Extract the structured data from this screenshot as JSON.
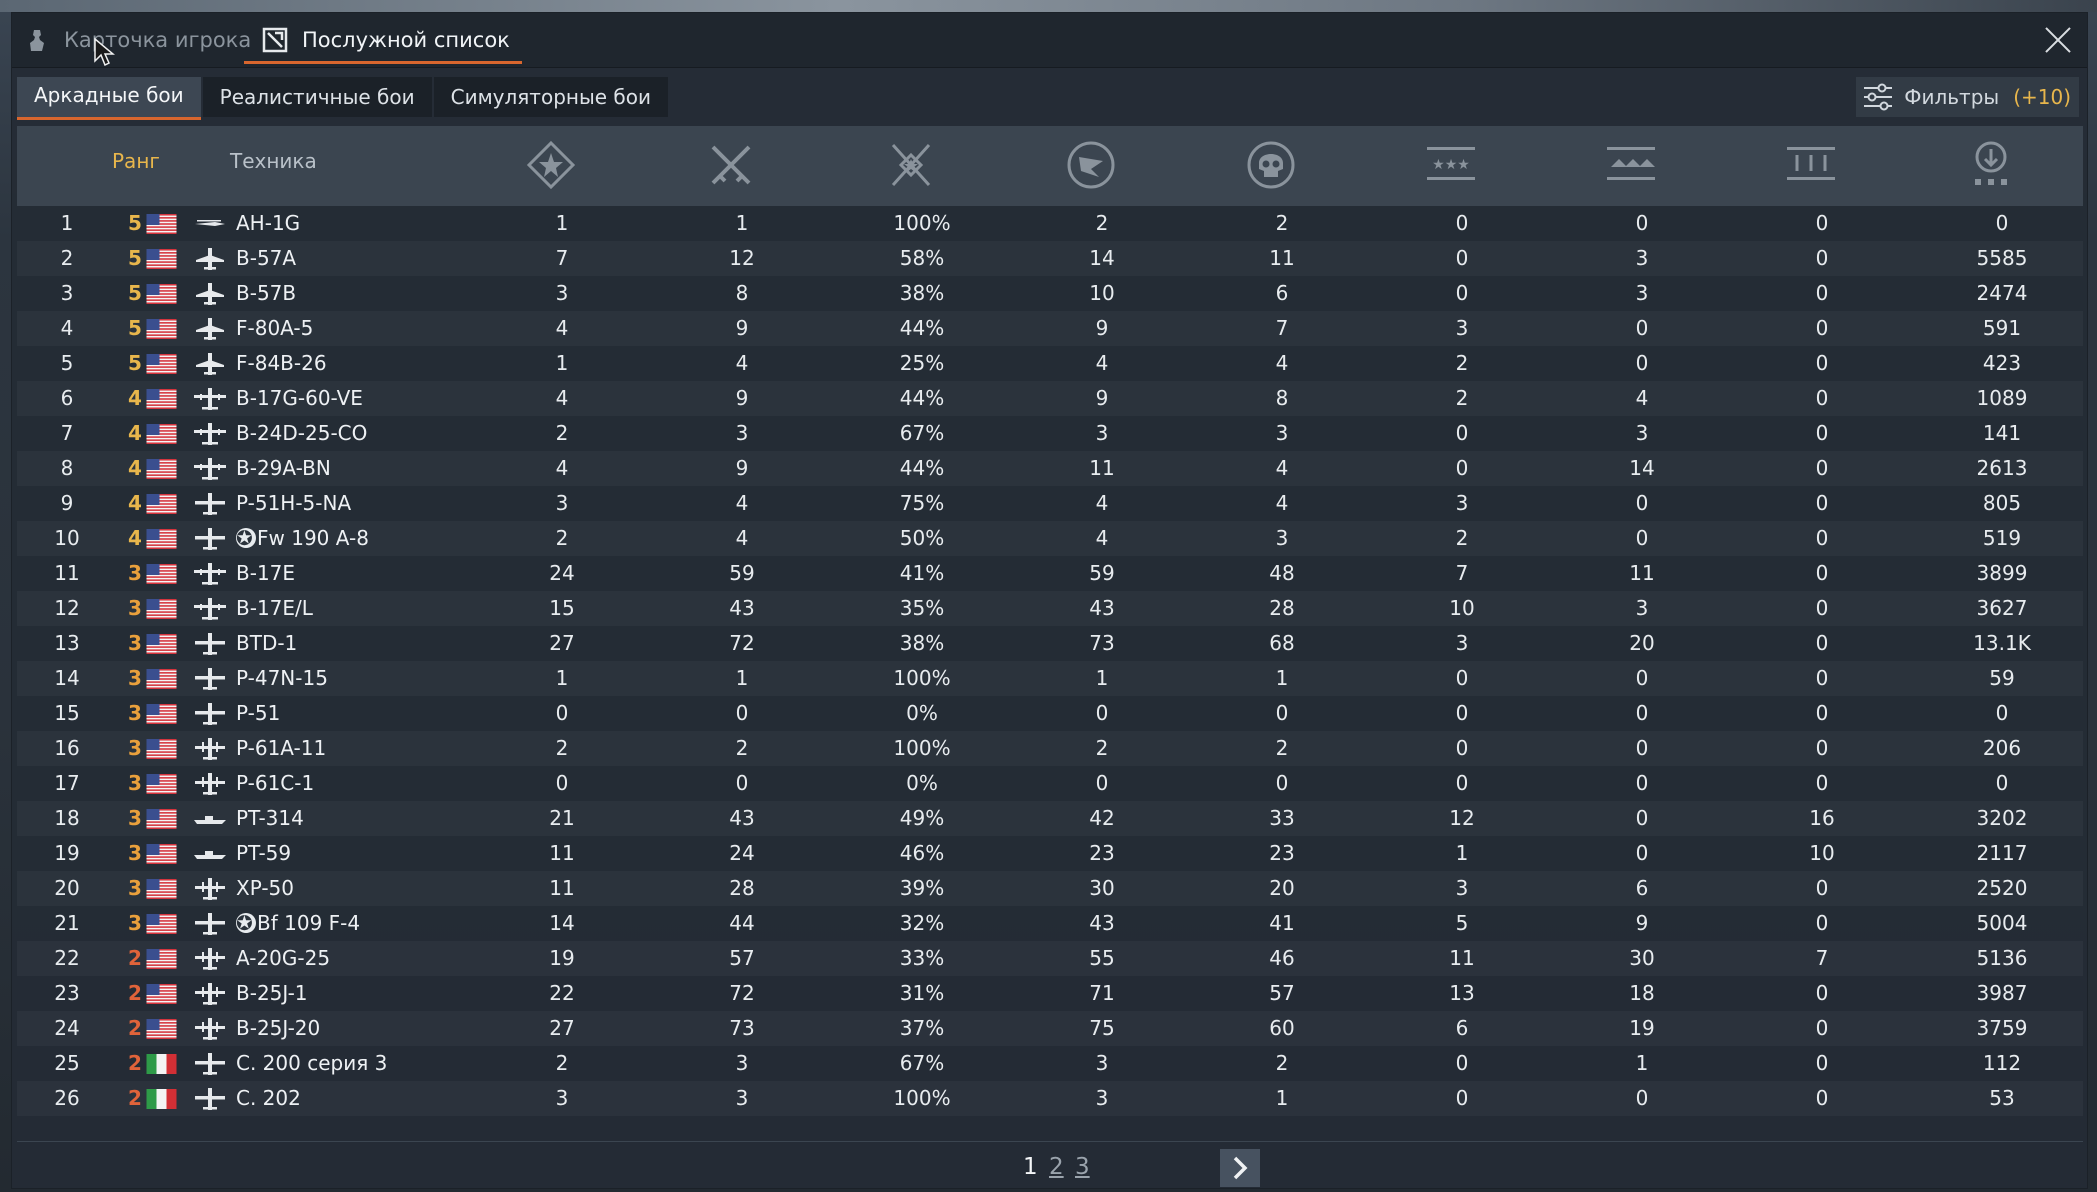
{
  "window_tabs": [
    {
      "label": "Карточка игрока",
      "active": false,
      "icon": "soldier-icon"
    },
    {
      "label": "Послужной список",
      "active": true,
      "icon": "medal-icon"
    }
  ],
  "mode_tabs": [
    {
      "label": "Аркадные бои",
      "active": true
    },
    {
      "label": "Реалистичные бои",
      "active": false
    },
    {
      "label": "Симуляторные бои",
      "active": false
    }
  ],
  "filters": {
    "label": "Фильтры",
    "count": "(+10)",
    "icon": "sliders-icon"
  },
  "table": {
    "headers": {
      "rank": "Ранг",
      "vehicle": "Техника"
    },
    "stat_icons": [
      "battles-star-icon",
      "crossed-swords-icon",
      "winrate-emblem-icon",
      "respawns-flag-icon",
      "deaths-skull-icon",
      "air-kills-icon",
      "ground-kills-icon",
      "naval-kills-icon",
      "score-icon"
    ],
    "rows": [
      {
        "idx": "1",
        "rank": "5",
        "nation": "usa",
        "type": "helicopter",
        "badge": false,
        "name": "AH-1G",
        "stats": [
          "1",
          "1",
          "100%",
          "2",
          "2",
          "0",
          "0",
          "0",
          "0"
        ]
      },
      {
        "idx": "2",
        "rank": "5",
        "nation": "usa",
        "type": "jet",
        "badge": false,
        "name": "B-57A",
        "stats": [
          "7",
          "12",
          "58%",
          "14",
          "11",
          "0",
          "3",
          "0",
          "5585"
        ]
      },
      {
        "idx": "3",
        "rank": "5",
        "nation": "usa",
        "type": "jet",
        "badge": false,
        "name": "B-57B",
        "stats": [
          "3",
          "8",
          "38%",
          "10",
          "6",
          "0",
          "3",
          "0",
          "2474"
        ]
      },
      {
        "idx": "4",
        "rank": "5",
        "nation": "usa",
        "type": "jet",
        "badge": false,
        "name": "F-80A-5",
        "stats": [
          "4",
          "9",
          "44%",
          "9",
          "7",
          "3",
          "0",
          "0",
          "591"
        ]
      },
      {
        "idx": "5",
        "rank": "5",
        "nation": "usa",
        "type": "jet",
        "badge": false,
        "name": "F-84B-26",
        "stats": [
          "1",
          "4",
          "25%",
          "4",
          "4",
          "2",
          "0",
          "0",
          "423"
        ]
      },
      {
        "idx": "6",
        "rank": "4",
        "nation": "usa",
        "type": "bomber",
        "badge": false,
        "name": "B-17G-60-VE",
        "stats": [
          "4",
          "9",
          "44%",
          "9",
          "8",
          "2",
          "4",
          "0",
          "1089"
        ]
      },
      {
        "idx": "7",
        "rank": "4",
        "nation": "usa",
        "type": "bomber",
        "badge": false,
        "name": "B-24D-25-CO",
        "stats": [
          "2",
          "3",
          "67%",
          "3",
          "3",
          "0",
          "3",
          "0",
          "141"
        ]
      },
      {
        "idx": "8",
        "rank": "4",
        "nation": "usa",
        "type": "bomber",
        "badge": false,
        "name": "B-29A-BN",
        "stats": [
          "4",
          "9",
          "44%",
          "11",
          "4",
          "0",
          "14",
          "0",
          "2613"
        ]
      },
      {
        "idx": "9",
        "rank": "4",
        "nation": "usa",
        "type": "fighter",
        "badge": false,
        "name": "P-51H-5-NA",
        "stats": [
          "3",
          "4",
          "75%",
          "4",
          "4",
          "3",
          "0",
          "0",
          "805"
        ]
      },
      {
        "idx": "10",
        "rank": "4",
        "nation": "usa",
        "type": "fighter",
        "badge": true,
        "name": "Fw 190 A-8",
        "stats": [
          "2",
          "4",
          "50%",
          "4",
          "3",
          "2",
          "0",
          "0",
          "519"
        ]
      },
      {
        "idx": "11",
        "rank": "3",
        "nation": "usa",
        "type": "bomber",
        "badge": false,
        "name": "B-17E",
        "stats": [
          "24",
          "59",
          "41%",
          "59",
          "48",
          "7",
          "11",
          "0",
          "3899"
        ]
      },
      {
        "idx": "12",
        "rank": "3",
        "nation": "usa",
        "type": "bomber",
        "badge": false,
        "name": "B-17E/L",
        "stats": [
          "15",
          "43",
          "35%",
          "43",
          "28",
          "10",
          "3",
          "0",
          "3627"
        ]
      },
      {
        "idx": "13",
        "rank": "3",
        "nation": "usa",
        "type": "fighter",
        "badge": false,
        "name": "BTD-1",
        "stats": [
          "27",
          "72",
          "38%",
          "73",
          "68",
          "3",
          "20",
          "0",
          "13.1K"
        ]
      },
      {
        "idx": "14",
        "rank": "3",
        "nation": "usa",
        "type": "fighter",
        "badge": false,
        "name": "P-47N-15",
        "stats": [
          "1",
          "1",
          "100%",
          "1",
          "1",
          "0",
          "0",
          "0",
          "59"
        ]
      },
      {
        "idx": "15",
        "rank": "3",
        "nation": "usa",
        "type": "fighter",
        "badge": false,
        "name": "P-51",
        "stats": [
          "0",
          "0",
          "0%",
          "0",
          "0",
          "0",
          "0",
          "0",
          "0"
        ]
      },
      {
        "idx": "16",
        "rank": "3",
        "nation": "usa",
        "type": "twin",
        "badge": false,
        "name": "P-61A-11",
        "stats": [
          "2",
          "2",
          "100%",
          "2",
          "2",
          "0",
          "0",
          "0",
          "206"
        ]
      },
      {
        "idx": "17",
        "rank": "3",
        "nation": "usa",
        "type": "twin",
        "badge": false,
        "name": "P-61C-1",
        "stats": [
          "0",
          "0",
          "0%",
          "0",
          "0",
          "0",
          "0",
          "0",
          "0"
        ]
      },
      {
        "idx": "18",
        "rank": "3",
        "nation": "usa",
        "type": "boat",
        "badge": false,
        "name": "PT-314",
        "stats": [
          "21",
          "43",
          "49%",
          "42",
          "33",
          "12",
          "0",
          "16",
          "3202"
        ]
      },
      {
        "idx": "19",
        "rank": "3",
        "nation": "usa",
        "type": "boat",
        "badge": false,
        "name": "PT-59",
        "stats": [
          "11",
          "24",
          "46%",
          "23",
          "23",
          "1",
          "0",
          "10",
          "2117"
        ]
      },
      {
        "idx": "20",
        "rank": "3",
        "nation": "usa",
        "type": "twin",
        "badge": false,
        "name": "XP-50",
        "stats": [
          "11",
          "28",
          "39%",
          "30",
          "20",
          "3",
          "6",
          "0",
          "2520"
        ]
      },
      {
        "idx": "21",
        "rank": "3",
        "nation": "usa",
        "type": "fighter",
        "badge": true,
        "name": "Bf 109 F-4",
        "stats": [
          "14",
          "44",
          "32%",
          "43",
          "41",
          "5",
          "9",
          "0",
          "5004"
        ]
      },
      {
        "idx": "22",
        "rank": "2",
        "nation": "usa",
        "type": "twin",
        "badge": false,
        "name": "A-20G-25",
        "stats": [
          "19",
          "57",
          "33%",
          "55",
          "46",
          "11",
          "30",
          "7",
          "5136"
        ]
      },
      {
        "idx": "23",
        "rank": "2",
        "nation": "usa",
        "type": "twin",
        "badge": false,
        "name": "B-25J-1",
        "stats": [
          "22",
          "72",
          "31%",
          "71",
          "57",
          "13",
          "18",
          "0",
          "3987"
        ]
      },
      {
        "idx": "24",
        "rank": "2",
        "nation": "usa",
        "type": "twin",
        "badge": false,
        "name": "B-25J-20",
        "stats": [
          "27",
          "73",
          "37%",
          "75",
          "60",
          "6",
          "19",
          "0",
          "3759"
        ]
      },
      {
        "idx": "25",
        "rank": "2",
        "nation": "italy",
        "type": "fighter",
        "badge": false,
        "name": "C. 200 серия 3",
        "stats": [
          "2",
          "3",
          "67%",
          "3",
          "2",
          "0",
          "1",
          "0",
          "112"
        ]
      },
      {
        "idx": "26",
        "rank": "2",
        "nation": "italy",
        "type": "fighter",
        "badge": false,
        "name": "C. 202",
        "stats": [
          "3",
          "3",
          "100%",
          "3",
          "1",
          "0",
          "0",
          "0",
          "53"
        ]
      }
    ]
  },
  "pagination": {
    "pages": [
      "1",
      "2",
      "3"
    ],
    "current": "1",
    "next_icon": "chevron-right-icon"
  },
  "colors": {
    "accent": "#d8662e",
    "rank_5": "#e8b64c",
    "rank_4": "#e8b64c",
    "rank_3": "#e9a03c",
    "rank_2": "#e0633a",
    "filter_count": "#e8b64c"
  }
}
